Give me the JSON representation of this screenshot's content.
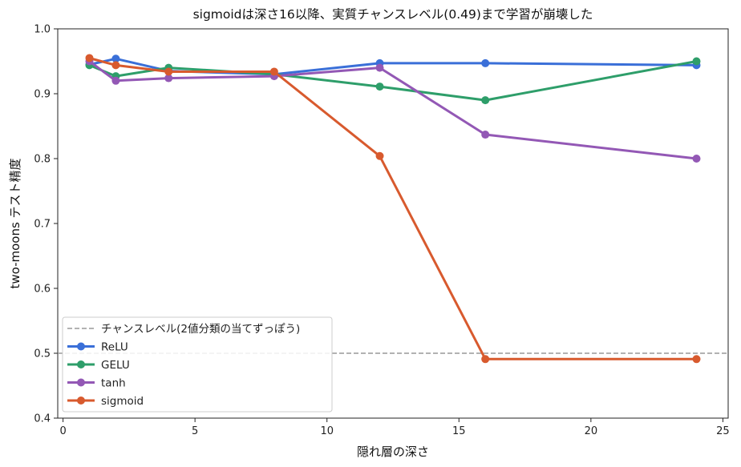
{
  "chart_data": {
    "type": "line",
    "title": "sigmoidは深さ16以降、実質チャンスレベル(0.49)まで学習が崩壊した",
    "xlabel": "隠れ層の深さ",
    "ylabel": "two-moons テスト精度",
    "xlim": [
      -0.2,
      25.2
    ],
    "ylim": [
      0.4,
      1.0
    ],
    "xticks": [
      0,
      5,
      10,
      15,
      20,
      25
    ],
    "yticks": [
      0.4,
      0.5,
      0.6,
      0.7,
      0.8,
      0.9,
      1.0
    ],
    "x": [
      1,
      2,
      4,
      8,
      12,
      16,
      24
    ],
    "series": [
      {
        "name": "ReLU",
        "color": "#3a6fd8",
        "values": [
          0.945,
          0.954,
          0.935,
          0.93,
          0.947,
          0.947,
          0.944
        ]
      },
      {
        "name": "GELU",
        "color": "#2e9e6a",
        "values": [
          0.944,
          0.927,
          0.94,
          0.93,
          0.911,
          0.89,
          0.95
        ]
      },
      {
        "name": "tanh",
        "color": "#9358b5",
        "values": [
          0.95,
          0.92,
          0.924,
          0.927,
          0.94,
          0.837,
          0.8
        ]
      },
      {
        "name": "sigmoid",
        "color": "#d85a2e",
        "values": [
          0.955,
          0.944,
          0.934,
          0.934,
          0.804,
          0.491,
          0.491
        ]
      }
    ],
    "reference_line": {
      "name": "チャンスレベル(2値分類の当てずっぽう)",
      "value": 0.5,
      "color": "#999999",
      "style": "dashed"
    },
    "legend_position": "lower-left",
    "grid": false
  }
}
